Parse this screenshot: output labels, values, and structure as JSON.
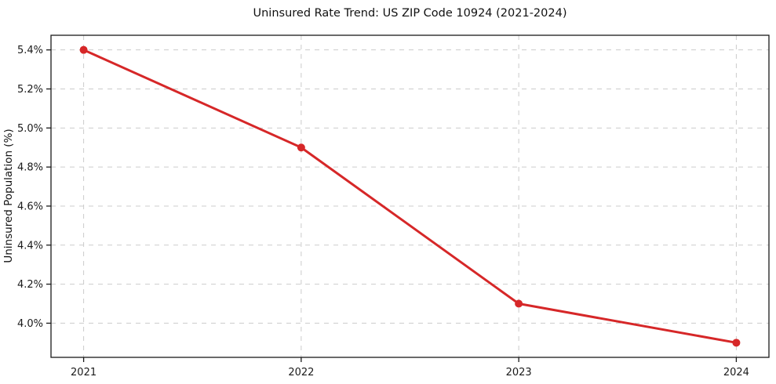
{
  "figure": {
    "background_color": "#ffffff"
  },
  "chart_data": {
    "type": "line",
    "title": "Uninsured Rate Trend: US ZIP Code 10924 (2021-2024)",
    "xlabel": "",
    "ylabel": "Uninsured Population (%)",
    "x": [
      2021,
      2022,
      2023,
      2024
    ],
    "series": [
      {
        "name": "Uninsured Rate",
        "values": [
          5.4,
          4.9,
          4.1,
          3.9
        ],
        "color": "#d62728",
        "marker": "circle",
        "line_width": 3,
        "marker_radius": 5
      }
    ],
    "x_tick_labels": [
      "2021",
      "2022",
      "2023",
      "2024"
    ],
    "y_tick_values": [
      4.0,
      4.2,
      4.4,
      4.6,
      4.8,
      5.0,
      5.2,
      5.4
    ],
    "y_tick_labels": [
      "4.0%",
      "4.2%",
      "4.4%",
      "4.6%",
      "4.8%",
      "5.0%",
      "5.2%",
      "5.4%"
    ],
    "xlim": [
      2020.85,
      2024.15
    ],
    "ylim": [
      3.825,
      5.475
    ],
    "grid": true,
    "grid_style": "dashed",
    "grid_color": "#cccccc",
    "spine_color": "#1a1a1a",
    "text_color": "#1a1a1a",
    "legend": "none"
  }
}
